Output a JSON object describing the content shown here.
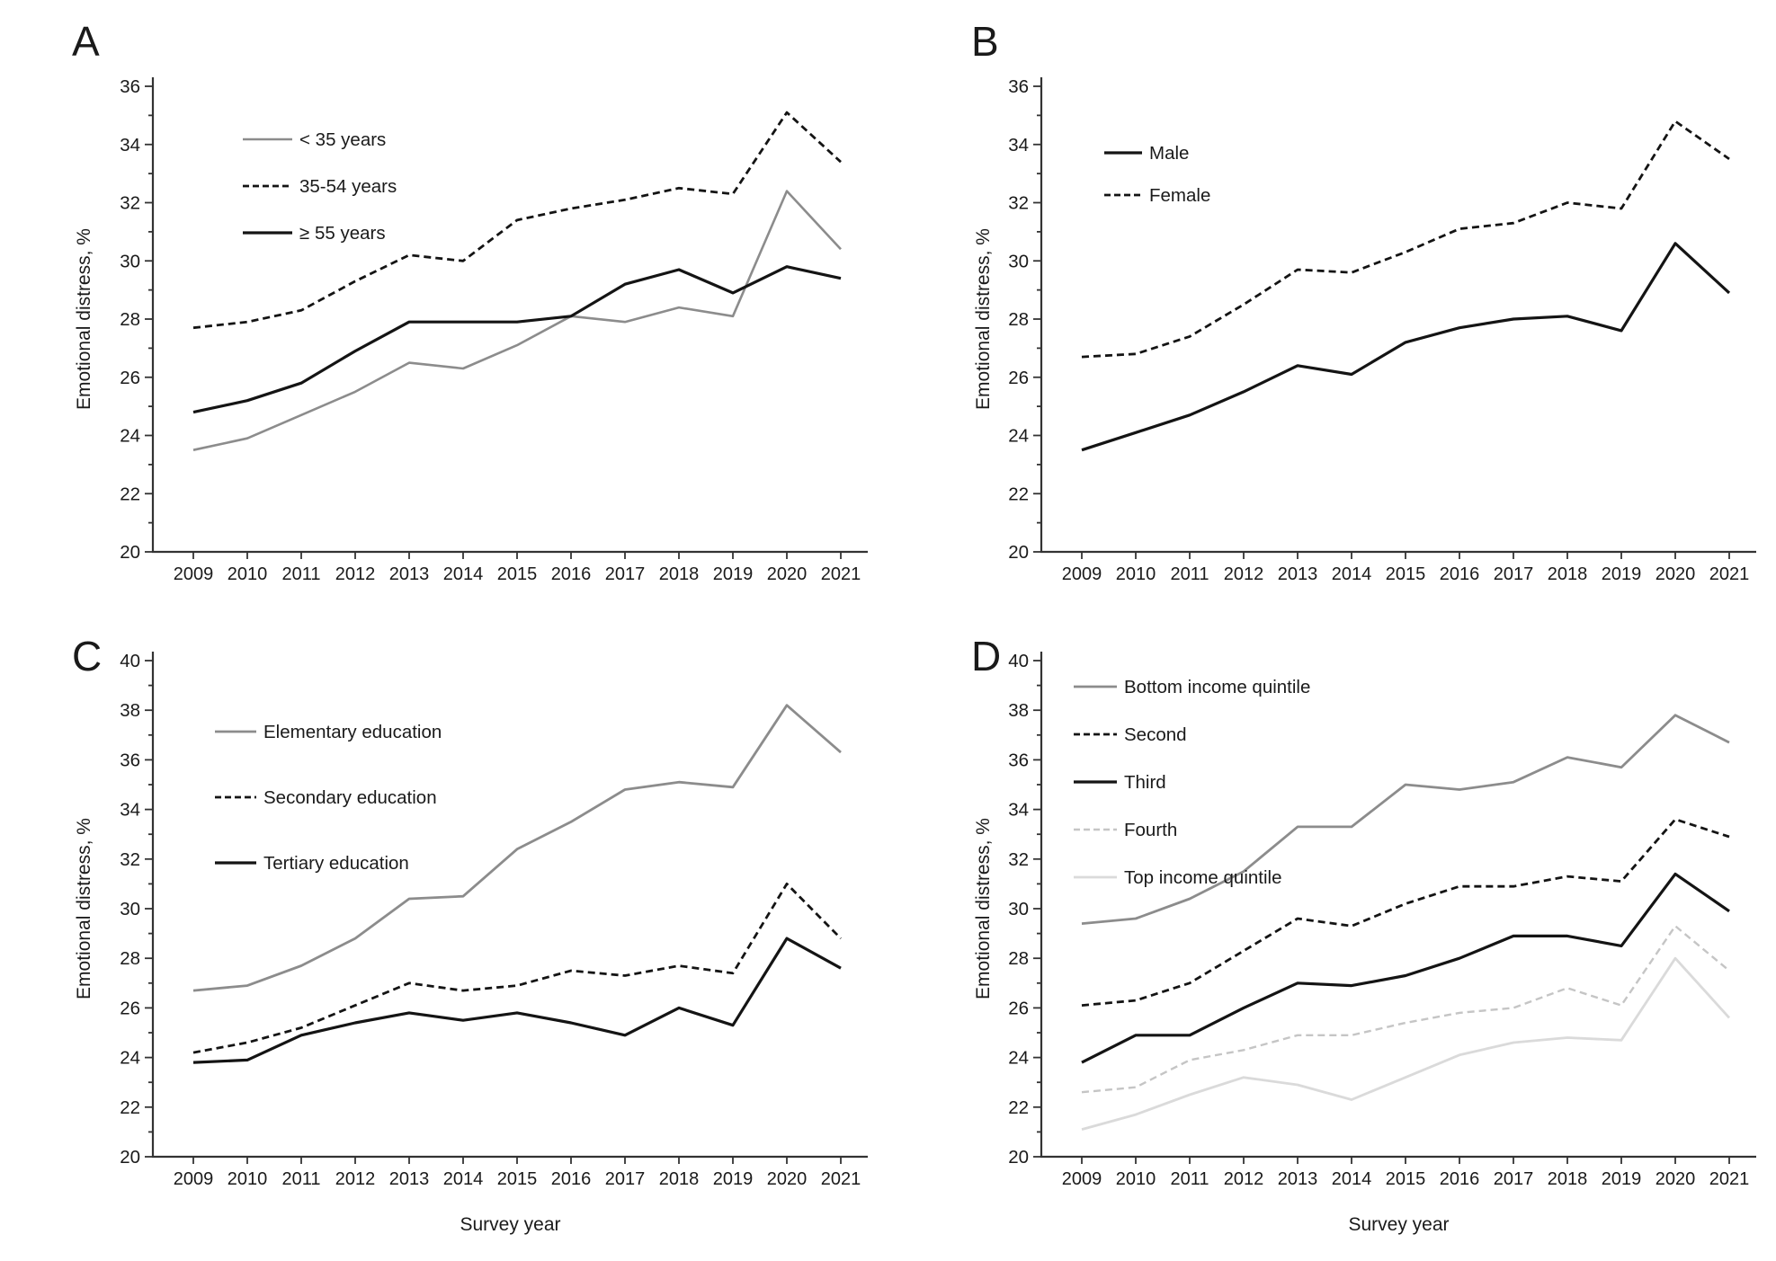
{
  "figure": {
    "background": "#ffffff",
    "axis_color": "#333333",
    "text_color": "#1a1a1a"
  },
  "chart_data": [
    {
      "panel_label": "A",
      "type": "line",
      "x": [
        2009,
        2010,
        2011,
        2012,
        2013,
        2014,
        2015,
        2016,
        2017,
        2018,
        2019,
        2020,
        2021
      ],
      "xtick_labels": [
        "2009",
        "2010",
        "2011",
        "2012",
        "2013",
        "2014",
        "2015",
        "2016",
        "2017",
        "2018",
        "2019",
        "2020",
        "2021"
      ],
      "xlabel": "",
      "ylabel": "Emotional distress, %",
      "ylim": [
        20,
        36
      ],
      "ytick_step": 2,
      "ytick_minor_step": 1,
      "grid": false,
      "legend_position": "inside-top-left",
      "series": [
        {
          "name": "< 35 years",
          "color": "#8c8c8c",
          "dash": "",
          "width": 2.6,
          "values": [
            23.5,
            23.9,
            24.7,
            25.5,
            26.5,
            26.3,
            27.1,
            28.1,
            27.9,
            28.4,
            28.1,
            32.4,
            30.4
          ]
        },
        {
          "name": "35-54 years",
          "color": "#141414",
          "dash": "8 5",
          "width": 2.8,
          "values": [
            27.7,
            27.9,
            28.3,
            29.3,
            30.2,
            30.0,
            31.4,
            31.8,
            32.1,
            32.5,
            32.3,
            35.1,
            33.4
          ]
        },
        {
          "name": "≥ 55 years",
          "color": "#141414",
          "dash": "",
          "width": 3.2,
          "values": [
            24.8,
            25.2,
            25.8,
            26.9,
            27.9,
            27.9,
            27.9,
            28.1,
            29.2,
            29.7,
            28.9,
            29.8,
            29.4
          ]
        }
      ]
    },
    {
      "panel_label": "B",
      "type": "line",
      "x": [
        2009,
        2010,
        2011,
        2012,
        2013,
        2014,
        2015,
        2016,
        2017,
        2018,
        2019,
        2020,
        2021
      ],
      "xtick_labels": [
        "2009",
        "2010",
        "2011",
        "2012",
        "2013",
        "2014",
        "2015",
        "2016",
        "2017",
        "2018",
        "2019",
        "2020",
        "2021"
      ],
      "xlabel": "",
      "ylabel": "Emotional distress, %",
      "ylim": [
        20,
        36
      ],
      "ytick_step": 2,
      "ytick_minor_step": 1,
      "grid": false,
      "legend_position": "inside-top-left",
      "series": [
        {
          "name": "Male",
          "color": "#141414",
          "dash": "",
          "width": 3.2,
          "values": [
            23.5,
            24.1,
            24.7,
            25.5,
            26.4,
            26.1,
            27.2,
            27.7,
            28.0,
            28.1,
            27.6,
            30.6,
            28.9
          ]
        },
        {
          "name": "Female",
          "color": "#141414",
          "dash": "8 5",
          "width": 2.8,
          "values": [
            26.7,
            26.8,
            27.4,
            28.5,
            29.7,
            29.6,
            30.3,
            31.1,
            31.3,
            32.0,
            31.8,
            34.8,
            33.5
          ]
        }
      ]
    },
    {
      "panel_label": "C",
      "type": "line",
      "x": [
        2009,
        2010,
        2011,
        2012,
        2013,
        2014,
        2015,
        2016,
        2017,
        2018,
        2019,
        2020,
        2021
      ],
      "xtick_labels": [
        "2009",
        "2010",
        "2011",
        "2012",
        "2013",
        "2014",
        "2015",
        "2016",
        "2017",
        "2018",
        "2019",
        "2020",
        "2021"
      ],
      "xlabel": "Survey year",
      "ylabel": "Emotional distress, %",
      "ylim": [
        20,
        40
      ],
      "ytick_step": 2,
      "ytick_minor_step": 1,
      "grid": false,
      "legend_position": "inside-top-left",
      "series": [
        {
          "name": "Elementary education",
          "color": "#8c8c8c",
          "dash": "",
          "width": 2.8,
          "values": [
            26.7,
            26.9,
            27.7,
            28.8,
            30.4,
            30.5,
            32.4,
            33.5,
            34.8,
            35.1,
            34.9,
            38.2,
            36.3
          ]
        },
        {
          "name": "Secondary education",
          "color": "#141414",
          "dash": "8 5",
          "width": 2.8,
          "values": [
            24.2,
            24.6,
            25.2,
            26.1,
            27.0,
            26.7,
            26.9,
            27.5,
            27.3,
            27.7,
            27.4,
            31.0,
            28.8
          ]
        },
        {
          "name": "Tertiary education",
          "color": "#141414",
          "dash": "",
          "width": 3.2,
          "values": [
            23.8,
            23.9,
            24.9,
            25.4,
            25.8,
            25.5,
            25.8,
            25.4,
            24.9,
            26.0,
            25.3,
            28.8,
            27.6
          ]
        }
      ]
    },
    {
      "panel_label": "D",
      "type": "line",
      "x": [
        2009,
        2010,
        2011,
        2012,
        2013,
        2014,
        2015,
        2016,
        2017,
        2018,
        2019,
        2020,
        2021
      ],
      "xtick_labels": [
        "2009",
        "2010",
        "2011",
        "2012",
        "2013",
        "2014",
        "2015",
        "2016",
        "2017",
        "2018",
        "2019",
        "2020",
        "2021"
      ],
      "xlabel": "Survey year",
      "ylabel": "Emotional distress, %",
      "ylim": [
        20,
        40
      ],
      "ytick_step": 2,
      "ytick_minor_step": 1,
      "grid": false,
      "legend_position": "inside-top-left",
      "series": [
        {
          "name": "Bottom income quintile",
          "color": "#8c8c8c",
          "dash": "",
          "width": 2.8,
          "values": [
            29.4,
            29.6,
            30.4,
            31.5,
            33.3,
            33.3,
            35.0,
            34.8,
            35.1,
            36.1,
            35.7,
            37.8,
            36.7
          ]
        },
        {
          "name": "Second",
          "color": "#141414",
          "dash": "8 5",
          "width": 2.8,
          "values": [
            26.1,
            26.3,
            27.0,
            28.3,
            29.6,
            29.3,
            30.2,
            30.9,
            30.9,
            31.3,
            31.1,
            33.6,
            32.9
          ]
        },
        {
          "name": "Third",
          "color": "#141414",
          "dash": "",
          "width": 3.2,
          "values": [
            23.8,
            24.9,
            24.9,
            26.0,
            27.0,
            26.9,
            27.3,
            28.0,
            28.9,
            28.9,
            28.5,
            31.4,
            29.9
          ]
        },
        {
          "name": "Fourth",
          "color": "#c5c5c5",
          "dash": "8 5",
          "width": 2.4,
          "values": [
            22.6,
            22.8,
            23.9,
            24.3,
            24.9,
            24.9,
            25.4,
            25.8,
            26.0,
            26.8,
            26.1,
            29.3,
            27.5
          ]
        },
        {
          "name": "Top income quintile",
          "color": "#dadada",
          "dash": "",
          "width": 2.8,
          "values": [
            21.1,
            21.7,
            22.5,
            23.2,
            22.9,
            22.3,
            23.2,
            24.1,
            24.6,
            24.8,
            24.7,
            28.0,
            25.6
          ]
        }
      ]
    }
  ]
}
